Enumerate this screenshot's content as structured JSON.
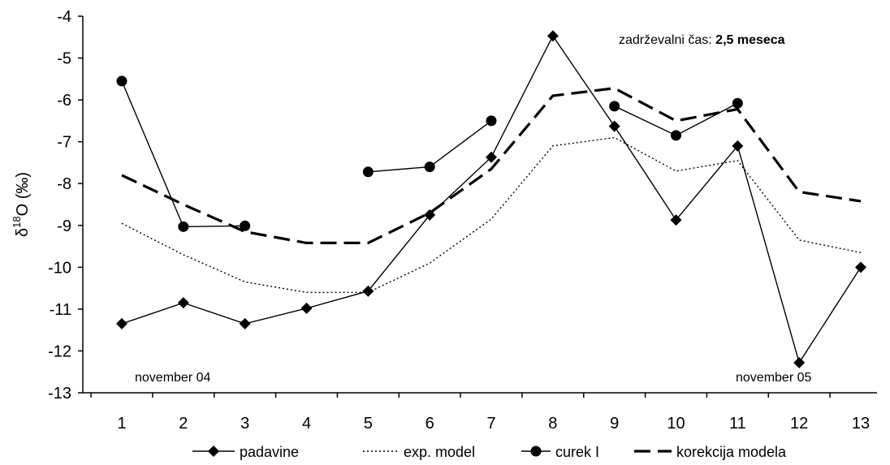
{
  "chart_data": {
    "type": "line",
    "x": [
      1,
      2,
      3,
      4,
      5,
      6,
      7,
      8,
      9,
      10,
      11,
      12,
      13
    ],
    "xticks": [
      "1",
      "2",
      "3",
      "4",
      "5",
      "6",
      "7",
      "8",
      "9",
      "10",
      "11",
      "12",
      "13"
    ],
    "ylim": [
      -13,
      -4
    ],
    "yticks": [
      "-4",
      "-5",
      "-6",
      "-7",
      "-8",
      "-9",
      "-10",
      "-11",
      "-12",
      "-13"
    ],
    "ylabel": {
      "prefix": "δ",
      "sup": "18",
      "suffix": "O (‰)"
    },
    "grid": false,
    "legend_position": "bottom",
    "annotations": {
      "retention_label": "zadrževalni čas: ",
      "retention_value": "2,5 meseca",
      "start_label": "november 04",
      "end_label": "november 05"
    },
    "series": [
      {
        "name": "padavine",
        "style": "solid-diamond",
        "color": "#000000",
        "values": [
          -11.35,
          -10.85,
          -11.35,
          -10.98,
          -10.57,
          -8.75,
          -7.37,
          -4.47,
          -6.63,
          -8.87,
          -7.1,
          -12.28,
          -10.0
        ]
      },
      {
        "name": "exp. model",
        "style": "dotted",
        "color": "#000000",
        "values": [
          -8.95,
          -9.7,
          -10.35,
          -10.6,
          -10.6,
          -9.9,
          -8.85,
          -7.1,
          -6.9,
          -7.7,
          -7.45,
          -9.35,
          -9.65
        ]
      },
      {
        "name": "curek I",
        "style": "solid-circle",
        "color": "#000000",
        "values": [
          -5.55,
          -9.03,
          -9.01,
          null,
          -7.72,
          -7.6,
          -6.5,
          null,
          -6.15,
          -6.85,
          -6.08,
          null,
          null
        ]
      },
      {
        "name": "korekcija modela",
        "style": "dashed",
        "color": "#000000",
        "values": [
          -7.8,
          -8.5,
          -9.15,
          -9.42,
          -9.42,
          -8.7,
          -7.65,
          -5.9,
          -5.72,
          -6.5,
          -6.22,
          -8.2,
          -8.42
        ]
      }
    ]
  }
}
